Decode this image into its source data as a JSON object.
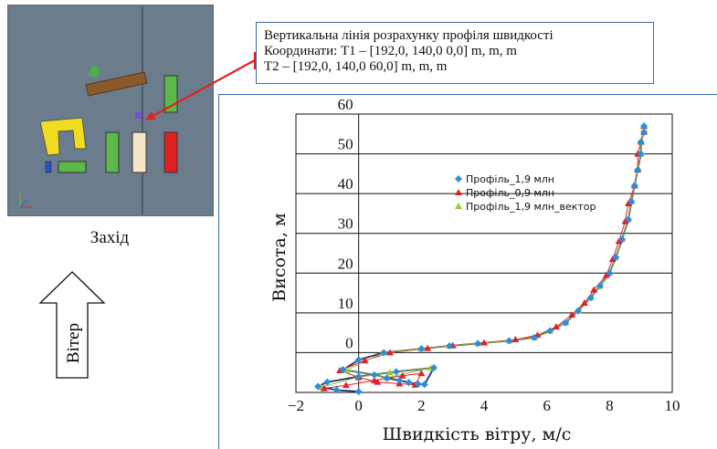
{
  "callout": {
    "line1": "Вертикальна лінія розрахунку профіля швидкості",
    "line2": "Координати: T1 – [192,0,  140,0  0,0] m, m, m",
    "line3": "T2 – [192,0,  140,0  60,0] m, m, m"
  },
  "view": {
    "caption": "Захід",
    "wind_label": "Вітер",
    "background_color": "#6b7c8c"
  },
  "chart_data": {
    "type": "line",
    "xlabel": "Швидкість вітру, м/с",
    "ylabel": "Висота, м",
    "xlim": [
      -2,
      10
    ],
    "ylim": [
      -10,
      60
    ],
    "x_ticks": [
      -2,
      0,
      2,
      4,
      6,
      8,
      10
    ],
    "y_ticks": [
      0,
      10,
      20,
      30,
      40,
      50,
      60
    ],
    "grid": "horizontal",
    "legend_position": "top-right",
    "series": [
      {
        "name": "Профіль_1,9 млн",
        "marker": "diamond",
        "color": "#2a8fd8",
        "line_color": "#1f2d6e",
        "points": [
          [
            0.0,
            -9.8
          ],
          [
            -0.7,
            -9.4
          ],
          [
            -1.3,
            -8.5
          ],
          [
            -1.0,
            -7.4
          ],
          [
            0.0,
            -6.0
          ],
          [
            1.2,
            -4.8
          ],
          [
            2.4,
            -3.8
          ],
          [
            2.1,
            -8.0
          ],
          [
            1.9,
            -7.9
          ],
          [
            1.6,
            -7.5
          ],
          [
            1.3,
            -7.0
          ],
          [
            0.9,
            -6.4
          ],
          [
            0.5,
            -5.6
          ],
          [
            -0.5,
            -4.3
          ],
          [
            0.0,
            -1.8
          ],
          [
            0.8,
            0.0
          ],
          [
            2.0,
            1.0
          ],
          [
            2.9,
            1.7
          ],
          [
            3.8,
            2.3
          ],
          [
            4.8,
            3.0
          ],
          [
            5.6,
            3.8
          ],
          [
            6.1,
            5.5
          ],
          [
            6.6,
            7.5
          ],
          [
            7.0,
            10.5
          ],
          [
            7.4,
            13.8
          ],
          [
            7.7,
            16.8
          ],
          [
            8.0,
            20.0
          ],
          [
            8.2,
            24.0
          ],
          [
            8.4,
            28.5
          ],
          [
            8.6,
            33.5
          ],
          [
            8.7,
            38.0
          ],
          [
            8.8,
            42.0
          ],
          [
            8.9,
            46.0
          ],
          [
            9.0,
            50.0
          ],
          [
            9.0,
            53.0
          ],
          [
            9.1,
            55.5
          ],
          [
            9.1,
            57.0
          ]
        ]
      },
      {
        "name": "Профіль_0,9 млн",
        "marker": "triangle",
        "color": "#e0202a",
        "line_color": "#e0202a",
        "points": [
          [
            -1.1,
            -9.0
          ],
          [
            -0.4,
            -8.2
          ],
          [
            0.5,
            -7.0
          ],
          [
            1.4,
            -5.8
          ],
          [
            2.0,
            -5.2
          ],
          [
            1.8,
            -8.1
          ],
          [
            1.3,
            -7.8
          ],
          [
            0.6,
            -7.4
          ],
          [
            0.0,
            -6.2
          ],
          [
            -0.6,
            -4.5
          ],
          [
            0.2,
            -2.0
          ],
          [
            1.0,
            0.0
          ],
          [
            2.2,
            1.1
          ],
          [
            3.0,
            1.8
          ],
          [
            4.0,
            2.5
          ],
          [
            5.0,
            3.3
          ],
          [
            5.7,
            4.4
          ],
          [
            6.3,
            6.5
          ],
          [
            6.8,
            9.5
          ],
          [
            7.2,
            12.5
          ],
          [
            7.5,
            15.8
          ],
          [
            7.9,
            19.5
          ],
          [
            8.1,
            23.5
          ],
          [
            8.3,
            28.0
          ],
          [
            8.5,
            33.0
          ],
          [
            8.6,
            37.5
          ],
          [
            8.8,
            42.0
          ],
          [
            8.9,
            46.0
          ],
          [
            8.9,
            50.0
          ],
          [
            9.0,
            53.0
          ],
          [
            9.1,
            55.5
          ],
          [
            9.1,
            57.0
          ]
        ]
      },
      {
        "name": "Профіль_1,9 млн_вектор",
        "marker": "triangle",
        "color": "#9acd32",
        "line_color": "#8fb83a",
        "points": [
          [
            -1.2,
            -8.7
          ],
          [
            0.0,
            -6.1
          ],
          [
            1.0,
            -5.0
          ],
          [
            2.3,
            -3.9
          ],
          [
            0.9,
            -6.3
          ],
          [
            -0.4,
            -4.4
          ],
          [
            0.8,
            0.0
          ],
          [
            2.0,
            1.0
          ],
          [
            2.9,
            1.7
          ],
          [
            3.8,
            2.3
          ],
          [
            4.8,
            3.0
          ],
          [
            5.6,
            3.8
          ],
          [
            6.1,
            5.5
          ],
          [
            6.6,
            7.5
          ],
          [
            7.0,
            10.5
          ],
          [
            7.4,
            13.8
          ],
          [
            7.7,
            16.8
          ],
          [
            8.0,
            20.0
          ],
          [
            8.2,
            24.0
          ],
          [
            8.4,
            28.5
          ],
          [
            8.6,
            33.5
          ],
          [
            8.7,
            38.0
          ],
          [
            8.8,
            42.0
          ],
          [
            8.9,
            46.0
          ],
          [
            9.0,
            50.0
          ],
          [
            9.0,
            53.0
          ],
          [
            9.1,
            55.5
          ],
          [
            9.1,
            57.0
          ]
        ]
      }
    ]
  }
}
